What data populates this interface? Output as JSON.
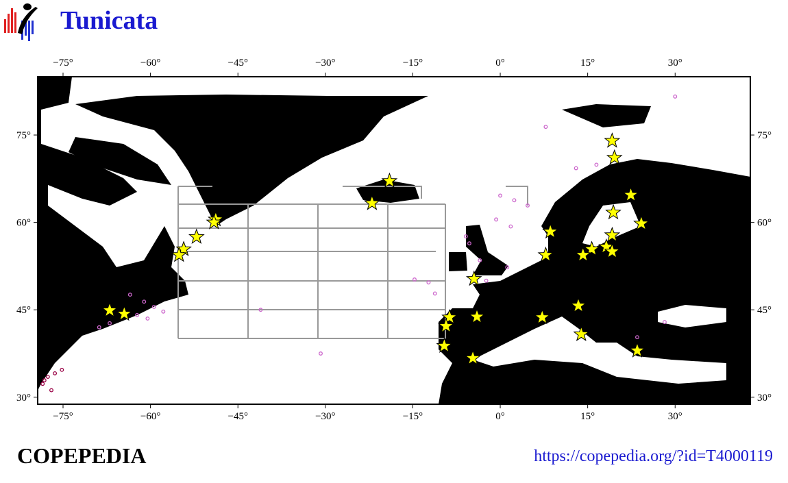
{
  "map": {
    "title": "Tunicata",
    "footer": "COPEPEDIA",
    "url": "https://copepedia.org/?id=T4000119",
    "xlim": [
      -79.35,
      42.9
    ],
    "ylim": [
      28.8,
      85.0
    ],
    "xticks": [
      {
        "value": -75,
        "label": "−75°"
      },
      {
        "value": -60,
        "label": "−60°"
      },
      {
        "value": -45,
        "label": "−45°"
      },
      {
        "value": -30,
        "label": "−30°"
      },
      {
        "value": -15,
        "label": "−15°"
      },
      {
        "value": 0,
        "label": "0°"
      },
      {
        "value": 15,
        "label": "15°"
      },
      {
        "value": 30,
        "label": "30°"
      }
    ],
    "yticks": [
      {
        "value": 30,
        "label": "30°"
      },
      {
        "value": 45,
        "label": "45°"
      },
      {
        "value": 60,
        "label": "60°"
      },
      {
        "value": 75,
        "label": "75°"
      }
    ],
    "stars": {
      "color": "#ffff00",
      "points": [
        [
          -19.0,
          67.1
        ],
        [
          -22.0,
          63.3
        ],
        [
          -48.8,
          60.5
        ],
        [
          -49.1,
          60.0
        ],
        [
          -52.1,
          57.5
        ],
        [
          -54.3,
          55.4
        ],
        [
          -55.1,
          54.4
        ],
        [
          -67.0,
          44.9
        ],
        [
          -64.5,
          44.3
        ],
        [
          19.2,
          74.0
        ],
        [
          19.6,
          71.1
        ],
        [
          22.4,
          64.7
        ],
        [
          19.4,
          61.7
        ],
        [
          24.2,
          59.8
        ],
        [
          8.6,
          58.4
        ],
        [
          19.2,
          57.8
        ],
        [
          15.7,
          55.4
        ],
        [
          14.2,
          54.4
        ],
        [
          18.2,
          55.8
        ],
        [
          19.2,
          55.0
        ],
        [
          7.8,
          54.4
        ],
        [
          -4.5,
          50.3
        ],
        [
          -8.7,
          43.7
        ],
        [
          -9.3,
          42.2
        ],
        [
          -4.0,
          43.8
        ],
        [
          -9.6,
          38.8
        ],
        [
          -4.7,
          36.7
        ],
        [
          7.2,
          43.7
        ],
        [
          13.4,
          45.7
        ],
        [
          13.9,
          40.8
        ],
        [
          23.5,
          38.0
        ]
      ]
    },
    "dots": [
      {
        "color": "#cc66cc",
        "points": [
          [
            -63.5,
            47.6
          ],
          [
            -61.1,
            46.4
          ],
          [
            -59.4,
            45.5
          ],
          [
            -57.8,
            44.7
          ],
          [
            -62.3,
            44.1
          ],
          [
            -60.5,
            43.5
          ],
          [
            -68.8,
            42.0
          ],
          [
            -67.0,
            42.7
          ],
          [
            7.8,
            76.4
          ],
          [
            30.0,
            81.6
          ],
          [
            13.0,
            69.3
          ],
          [
            16.5,
            69.9
          ],
          [
            0.0,
            64.6
          ],
          [
            2.4,
            63.8
          ],
          [
            4.7,
            62.9
          ],
          [
            -0.7,
            60.5
          ],
          [
            1.8,
            59.3
          ],
          [
            -5.9,
            57.6
          ],
          [
            -5.3,
            56.4
          ],
          [
            -3.5,
            53.5
          ],
          [
            1.2,
            52.3
          ],
          [
            -14.7,
            50.2
          ],
          [
            -12.3,
            49.7
          ],
          [
            -11.2,
            47.8
          ],
          [
            -41.1,
            45.0
          ],
          [
            -30.8,
            37.5
          ],
          [
            -2.4,
            50.0
          ],
          [
            28.2,
            42.9
          ],
          [
            23.5,
            40.3
          ]
        ]
      },
      {
        "color": "#990044",
        "points": [
          [
            -78.5,
            32.3
          ],
          [
            -77.6,
            33.5
          ],
          [
            -76.4,
            34.1
          ],
          [
            -75.2,
            34.7
          ],
          [
            -77.0,
            31.2
          ],
          [
            -78.2,
            32.9
          ]
        ]
      }
    ]
  }
}
